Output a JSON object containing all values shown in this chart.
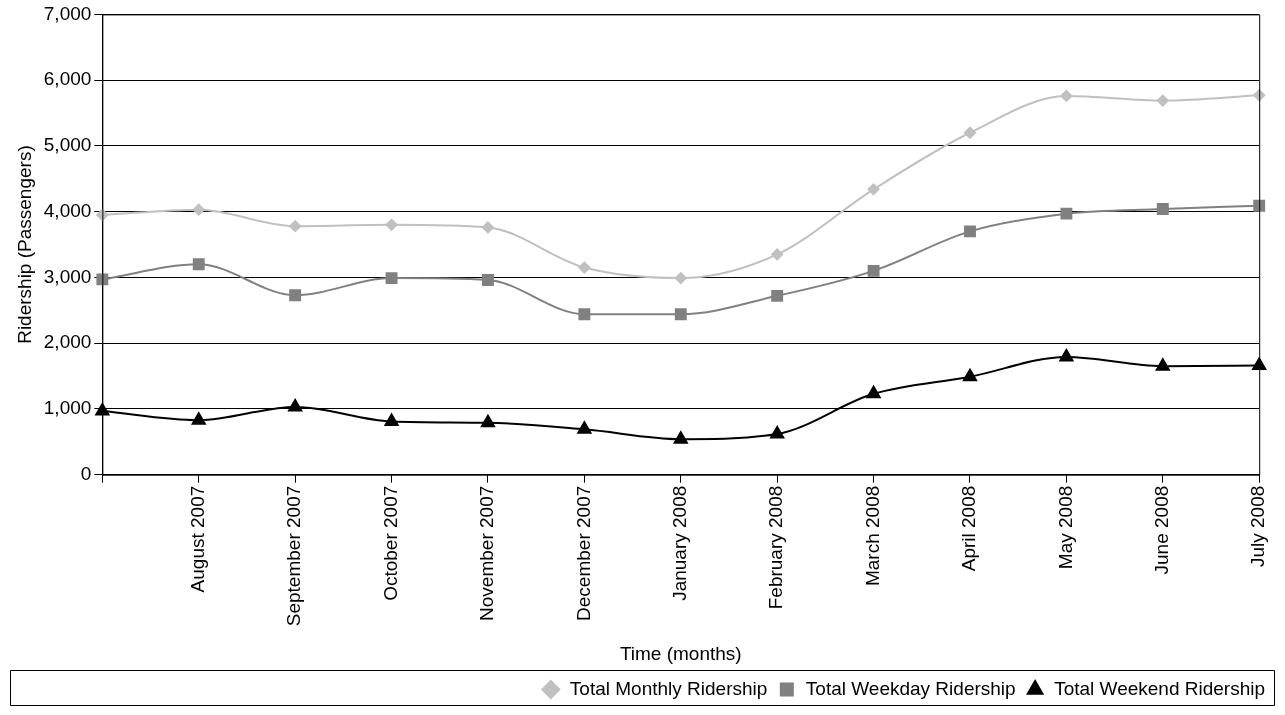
{
  "chart_data": {
    "type": "line",
    "xlabel": "Time (months)",
    "ylabel": "Ridership (Passengers)",
    "categories": [
      null,
      "August 2007",
      "September 2007",
      "October 2007",
      "November 2007",
      "December 2007",
      "January 2008",
      "February 2008",
      "March 2008",
      "April 2008",
      "May 2008",
      "June 2008",
      "July 2008"
    ],
    "series": [
      {
        "name": "Total Monthly Ridership",
        "color": "#c0c0c0",
        "marker": "diamond",
        "values": [
          3950,
          4030,
          3780,
          3800,
          3760,
          3150,
          2990,
          3350,
          4340,
          5200,
          5760,
          5690,
          5770
        ]
      },
      {
        "name": "Total Weekday Ridership",
        "color": "#808080",
        "marker": "square",
        "values": [
          2970,
          3200,
          2730,
          2990,
          2960,
          2440,
          2440,
          2720,
          3100,
          3700,
          3970,
          4040,
          4090
        ]
      },
      {
        "name": "Total Weekend Ridership",
        "color": "#000000",
        "marker": "triangle",
        "values": [
          970,
          830,
          1030,
          810,
          790,
          690,
          540,
          620,
          1230,
          1490,
          1790,
          1650,
          1660
        ]
      }
    ],
    "ylim": [
      0,
      7000
    ],
    "yticks": [
      {
        "value": 0,
        "label": "0"
      },
      {
        "value": 1000,
        "label": "1,000"
      },
      {
        "value": 2000,
        "label": "2,000"
      },
      {
        "value": 3000,
        "label": "3,000"
      },
      {
        "value": 4000,
        "label": "4,000"
      },
      {
        "value": 5000,
        "label": "5,000"
      },
      {
        "value": 6000,
        "label": "6,000"
      },
      {
        "value": 7000,
        "label": "7,000"
      }
    ],
    "grid": "y",
    "legend": "bottom"
  }
}
